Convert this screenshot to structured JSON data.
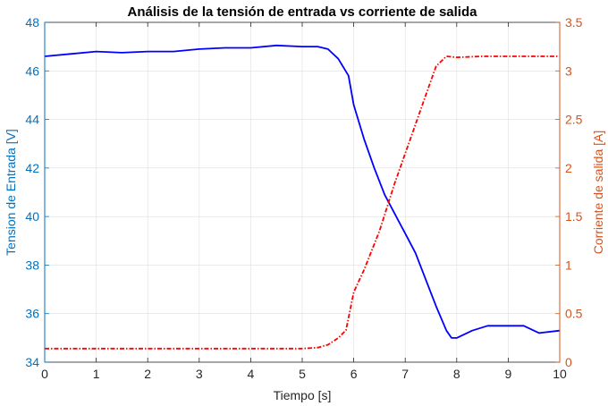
{
  "chart_data": {
    "type": "line",
    "title": "Análisis de la tensión de entrada vs corriente de salida",
    "xlabel": "Tiempo [s]",
    "ylabel_left": "Tension de Entrada [V]",
    "ylabel_right": "Corriente de salida [A]",
    "xlim": [
      0,
      10
    ],
    "ylim_left": [
      34,
      48
    ],
    "ylim_right": [
      0,
      3.5
    ],
    "x_ticks": [
      "0",
      "1",
      "2",
      "3",
      "4",
      "5",
      "6",
      "7",
      "8",
      "9",
      "10"
    ],
    "y_left_ticks": [
      "34",
      "36",
      "38",
      "40",
      "42",
      "44",
      "46",
      "48"
    ],
    "y_right_ticks": [
      "0",
      "0.5",
      "1",
      "1.5",
      "2",
      "2.5",
      "3",
      "3.5"
    ],
    "grid": true,
    "colors": {
      "left_axis": "#0072BD",
      "right_axis": "#D95319",
      "voltage_line": "#0000FF",
      "current_line": "#FF0000"
    },
    "series": [
      {
        "axis": "left",
        "style": "solid",
        "x": [
          0,
          0.5,
          1.0,
          1.5,
          2.0,
          2.5,
          3.0,
          3.5,
          4.0,
          4.5,
          5.0,
          5.3,
          5.5,
          5.7,
          5.9,
          6.0,
          6.2,
          6.4,
          6.6,
          6.8,
          7.0,
          7.2,
          7.4,
          7.6,
          7.8,
          7.9,
          8.0,
          8.3,
          8.6,
          9.0,
          9.3,
          9.6,
          10.0
        ],
        "values": [
          46.6,
          46.7,
          46.8,
          46.75,
          46.8,
          46.8,
          46.9,
          46.95,
          46.95,
          47.05,
          47.0,
          47.0,
          46.9,
          46.5,
          45.8,
          44.6,
          43.2,
          42.0,
          40.9,
          40.1,
          39.3,
          38.5,
          37.4,
          36.3,
          35.3,
          35.0,
          35.0,
          35.3,
          35.5,
          35.5,
          35.5,
          35.2,
          35.3
        ]
      },
      {
        "axis": "right",
        "style": "dashed",
        "x": [
          0,
          1.0,
          2.0,
          3.0,
          4.0,
          5.0,
          5.3,
          5.5,
          5.7,
          5.85,
          6.0,
          6.2,
          6.5,
          6.8,
          7.1,
          7.4,
          7.6,
          7.8,
          8.0,
          8.5,
          9.0,
          9.5,
          10.0
        ],
        "values": [
          0.14,
          0.14,
          0.14,
          0.14,
          0.14,
          0.14,
          0.15,
          0.18,
          0.25,
          0.33,
          0.72,
          0.95,
          1.35,
          1.85,
          2.3,
          2.75,
          3.05,
          3.15,
          3.14,
          3.15,
          3.15,
          3.15,
          3.15
        ]
      }
    ]
  }
}
